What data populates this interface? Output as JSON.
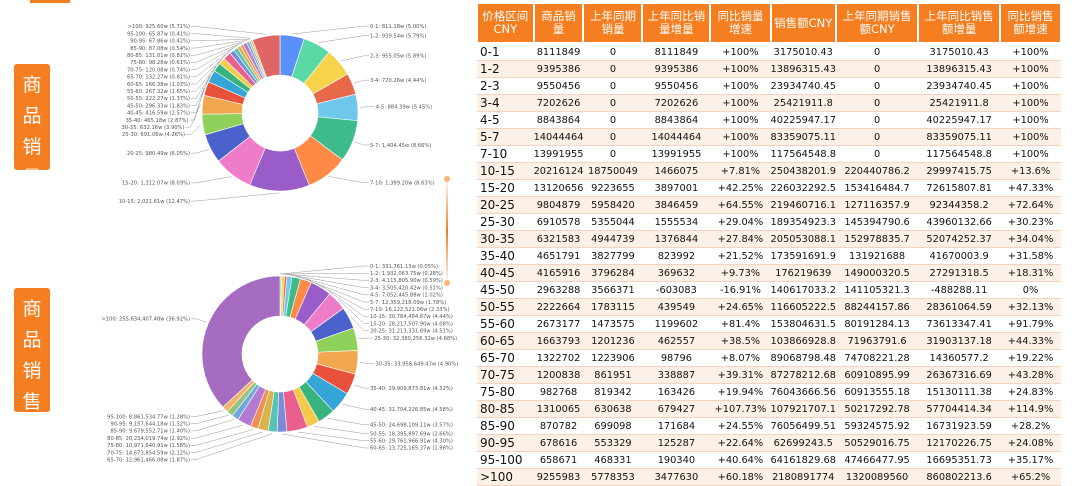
{
  "side_labels": {
    "sales": "商品销量",
    "revenue": "商品销售额"
  },
  "chart_data": [
    {
      "type": "pie",
      "variant": "donut",
      "slices": [
        {
          "label": "0-1",
          "value": 811.18,
          "text": "0-1: 811.18w (5.00%)",
          "color": "#5b8ff9"
        },
        {
          "label": "1-2",
          "value": 939.54,
          "text": "1-2: 939.54w (5.79%)",
          "color": "#5ad8a6"
        },
        {
          "label": "2-3",
          "value": 955.05,
          "text": "2-3: 955.05w (5.89%)",
          "color": "#f6d34a"
        },
        {
          "label": "3-4",
          "value": 720.26,
          "text": "3-4: 720.26w (4.44%)",
          "color": "#e8684a"
        },
        {
          "label": "4-5",
          "value": 884.39,
          "text": "4-5: 884.39w (5.45%)",
          "color": "#6dc8ec"
        },
        {
          "label": "5-7",
          "value": 1404.45,
          "text": "5-7: 1,404.45w (8.66%)",
          "color": "#3dbb8b"
        },
        {
          "label": "7-10",
          "value": 1399.2,
          "text": "7-10: 1,399.20w (8.63%)",
          "color": "#ff8a45"
        },
        {
          "label": "10-15",
          "value": 2021.61,
          "text": "10-15: 2,021.61w (12.47%)",
          "color": "#9a5cc9"
        },
        {
          "label": "15-20",
          "value": 1312.07,
          "text": "15-20: 1,312.07w (8.09%)",
          "color": "#ee7cc8"
        },
        {
          "label": "20-25",
          "value": 980.49,
          "text": "20-25: 980.49w (6.05%)",
          "color": "#4b62cc"
        },
        {
          "label": "25-30",
          "value": 691.06,
          "text": "25-30: 691.06w (4.26%)",
          "color": "#8fd05a"
        },
        {
          "label": "30-35",
          "value": 632.16,
          "text": "30-35: 632.16w (3.90%)",
          "color": "#f2a650"
        },
        {
          "label": "35-40",
          "value": 465.18,
          "text": "35-40: 465.18w (2.87%)",
          "color": "#e8523c"
        },
        {
          "label": "40-45",
          "value": 416.59,
          "text": "40-45: 416.59w (2.57%)",
          "color": "#35a4d6"
        },
        {
          "label": "45-50",
          "value": 296.33,
          "text": "45-50: 296.33w (1.83%)",
          "color": "#36b37e"
        },
        {
          "label": "50-55",
          "value": 222.27,
          "text": "50-55: 222.27w (1.37%)",
          "color": "#f7c948"
        },
        {
          "label": "55-60",
          "value": 267.32,
          "text": "55-60: 267.32w (1.65%)",
          "color": "#e95f8e"
        },
        {
          "label": "60-65",
          "value": 166.38,
          "text": "60-65: 166.38w (1.03%)",
          "color": "#7a8bd9"
        },
        {
          "label": "65-70",
          "value": 132.27,
          "text": "65-70: 132.27w (0.81%)",
          "color": "#58c2b4"
        },
        {
          "label": "70-75",
          "value": 120.08,
          "text": "70-75: 120.08w (0.74%)",
          "color": "#d9b44a"
        },
        {
          "label": "75-80",
          "value": 98.28,
          "text": "75-80: 98.28w (0.61%)",
          "color": "#ef8f52"
        },
        {
          "label": "80-85",
          "value": 131.01,
          "text": "80-85: 131.01w (0.81%)",
          "color": "#b37ad1"
        },
        {
          "label": "85-90",
          "value": 87.08,
          "text": "85-90: 87.08w (0.54%)",
          "color": "#6fa8dc"
        },
        {
          "label": "90-95",
          "value": 67.86,
          "text": "90-95: 67.86w (0.42%)",
          "color": "#93c47d"
        },
        {
          "label": "95-100",
          "value": 65.87,
          "text": "95-100: 65.87w (0.41%)",
          "color": "#f6b26b"
        },
        {
          "label": ">100",
          "value": 925.6,
          "text": ">100: 925.60w (5.71%)",
          "color": "#e06666"
        }
      ]
    },
    {
      "type": "pie",
      "variant": "donut",
      "slices": [
        {
          "label": "0-1",
          "value": 331761.13,
          "text": "0-1: 331,761.13w (0.05%)",
          "color": "#5b8ff9"
        },
        {
          "label": "1-2",
          "value": 1932063.75,
          "text": "1-2: 1,932,063.75w (0.28%)",
          "color": "#5ad8a6"
        },
        {
          "label": "2-3",
          "value": 4115805.9,
          "text": "2-3: 4,115,805.90w (0.59%)",
          "color": "#f6d34a"
        },
        {
          "label": "3-4",
          "value": 3505420.42,
          "text": "3-4: 3,505,420.42w (0.51%)",
          "color": "#e8684a"
        },
        {
          "label": "4-5",
          "value": 7052445.88,
          "text": "4-5: 7,052,445.88w (1.02%)",
          "color": "#6dc8ec"
        },
        {
          "label": "5-7",
          "value": 12359218.09,
          "text": "5-7: 12,359,218.09w (1.78%)",
          "color": "#3dbb8b"
        },
        {
          "label": "7-10",
          "value": 16122521.06,
          "text": "7-10: 16,122,521.06w (2.33%)",
          "color": "#ff8a45"
        },
        {
          "label": "10-15",
          "value": 30784484.67,
          "text": "10-15: 30,784,484.67w (4.44%)",
          "color": "#9a5cc9"
        },
        {
          "label": "15-20",
          "value": 28217507.9,
          "text": "15-20: 28,217,507.90w (4.08%)",
          "color": "#ee7cc8"
        },
        {
          "label": "20-25",
          "value": 31213331.69,
          "text": "20-25: 31,213,331.69w (4.51%)",
          "color": "#4b62cc"
        },
        {
          "label": "25-30",
          "value": 32380256.32,
          "text": "25-30: 32,380,256.32w (4.68%)",
          "color": "#8fd05a"
        },
        {
          "label": "30-35",
          "value": 33958649.47,
          "text": "30-35: 33,958,649.47w (4.90%)",
          "color": "#f2a650"
        },
        {
          "label": "35-40",
          "value": 29909873.81,
          "text": "35-40: 29,909,873.81w (4.32%)",
          "color": "#e8523c"
        },
        {
          "label": "40-45",
          "value": 31704226.85,
          "text": "40-45: 31,704,226.85w (4.58%)",
          "color": "#35a4d6"
        },
        {
          "label": "45-50",
          "value": 24698109.11,
          "text": "45-50: 24,698,109.11w (3.57%)",
          "color": "#36b37e"
        },
        {
          "label": "50-55",
          "value": 18395897.69,
          "text": "50-55: 18,395,897.69w (2.66%)",
          "color": "#f7c948"
        },
        {
          "label": "55-60",
          "value": 29761966.91,
          "text": "55-60: 29,761,966.91w (4.30%)",
          "color": "#e95f8e"
        },
        {
          "label": "60-65",
          "value": 13725165.37,
          "text": "60-65: 13,725,165.37w (1.98%)",
          "color": "#7a8bd9"
        },
        {
          "label": "65-70",
          "value": 12961466.08,
          "text": "65-70: 12,961,466.08w (1.87%)",
          "color": "#58c2b4"
        },
        {
          "label": "70-75",
          "value": 14673854.59,
          "text": "70-75: 14,673,854.59w (2.12%)",
          "color": "#d9b44a"
        },
        {
          "label": "75-80",
          "value": 10971640.91,
          "text": "75-80: 10,971,640.91w (1.58%)",
          "color": "#ef8f52"
        },
        {
          "label": "80-85",
          "value": 20234019.74,
          "text": "80-85: 20,234,019.74w (2.92%)",
          "color": "#b37ad1"
        },
        {
          "label": "85-90",
          "value": 9679552.71,
          "text": "85-90: 9,679,552.71w (1.40%)",
          "color": "#6fa8dc"
        },
        {
          "label": "90-95",
          "value": 9157644.18,
          "text": "90-95: 9,157,644.18w (1.32%)",
          "color": "#93c47d"
        },
        {
          "label": "95-100",
          "value": 8861534.77,
          "text": "95-100: 8,861,534.77w (1.28%)",
          "color": "#f6b26b"
        },
        {
          "label": ">100",
          "value": 255634407.48,
          "text": ">100: 255,634,407.48w (36.92%)",
          "color": "#a56cc1"
        }
      ]
    },
    {
      "type": "table",
      "headers": [
        "价格区间CNY",
        "商品销量",
        "上年同期销量",
        "上年同比销量增量",
        "同比销量增速",
        "销售额CNY",
        "上年同期销售额CNY",
        "上年同比销售额增量",
        "同比销售额增速"
      ],
      "rows": [
        [
          "0-1",
          "8111849",
          "0",
          "8111849",
          "+100%",
          "3175010.43",
          "0",
          "3175010.43",
          "+100%"
        ],
        [
          "1-2",
          "9395386",
          "0",
          "9395386",
          "+100%",
          "13896315.43",
          "0",
          "13896315.43",
          "+100%"
        ],
        [
          "2-3",
          "9550456",
          "0",
          "9550456",
          "+100%",
          "23934740.45",
          "0",
          "23934740.45",
          "+100%"
        ],
        [
          "3-4",
          "7202626",
          "0",
          "7202626",
          "+100%",
          "25421911.8",
          "0",
          "25421911.8",
          "+100%"
        ],
        [
          "4-5",
          "8843864",
          "0",
          "8843864",
          "+100%",
          "40225947.17",
          "0",
          "40225947.17",
          "+100%"
        ],
        [
          "5-7",
          "14044464",
          "0",
          "14044464",
          "+100%",
          "83359075.11",
          "0",
          "83359075.11",
          "+100%"
        ],
        [
          "7-10",
          "13991955",
          "0",
          "13991955",
          "+100%",
          "117564548.8",
          "0",
          "117564548.8",
          "+100%"
        ],
        [
          "10-15",
          "20216124",
          "18750049",
          "1466075",
          "+7.81%",
          "250438201.9",
          "220440786.2",
          "29997415.75",
          "+13.6%"
        ],
        [
          "15-20",
          "13120656",
          "9223655",
          "3897001",
          "+42.25%",
          "226032292.5",
          "153416484.7",
          "72615807.81",
          "+47.33%"
        ],
        [
          "20-25",
          "9804879",
          "5958420",
          "3846459",
          "+64.55%",
          "219460716.1",
          "127116357.9",
          "92344358.2",
          "+72.64%"
        ],
        [
          "25-30",
          "6910578",
          "5355044",
          "1555534",
          "+29.04%",
          "189354923.3",
          "145394790.6",
          "43960132.66",
          "+30.23%"
        ],
        [
          "30-35",
          "6321583",
          "4944739",
          "1376844",
          "+27.84%",
          "205053088.1",
          "152978835.7",
          "52074252.37",
          "+34.04%"
        ],
        [
          "35-40",
          "4651791",
          "3827799",
          "823992",
          "+21.52%",
          "173591691.9",
          "131921688",
          "41670003.9",
          "+31.58%"
        ],
        [
          "40-45",
          "4165916",
          "3796284",
          "369632",
          "+9.73%",
          "176219639",
          "149000320.5",
          "27291318.5",
          "+18.31%"
        ],
        [
          "45-50",
          "2963288",
          "3566371",
          "-603083",
          "-16.91%",
          "140617033.2",
          "141105321.3",
          "-488288.11",
          "0%"
        ],
        [
          "50-55",
          "2222664",
          "1783115",
          "439549",
          "+24.65%",
          "116605222.5",
          "88244157.86",
          "28361064.59",
          "+32.13%"
        ],
        [
          "55-60",
          "2673177",
          "1473575",
          "1199602",
          "+81.4%",
          "153804631.5",
          "80191284.13",
          "73613347.41",
          "+91.79%"
        ],
        [
          "60-65",
          "1663793",
          "1201236",
          "462557",
          "+38.5%",
          "103866928.8",
          "71963791.6",
          "31903137.18",
          "+44.33%"
        ],
        [
          "65-70",
          "1322702",
          "1223906",
          "98796",
          "+8.07%",
          "89068798.48",
          "74708221.28",
          "14360577.2",
          "+19.22%"
        ],
        [
          "70-75",
          "1200838",
          "861951",
          "338887",
          "+39.31%",
          "87278212.68",
          "60910895.99",
          "26367316.69",
          "+43.28%"
        ],
        [
          "75-80",
          "982768",
          "819342",
          "163426",
          "+19.94%",
          "76043666.56",
          "60913555.18",
          "15130111.38",
          "+24.83%"
        ],
        [
          "80-85",
          "1310065",
          "630638",
          "679427",
          "+107.73%",
          "107921707.1",
          "50217292.78",
          "57704414.34",
          "+114.9%"
        ],
        [
          "85-90",
          "870782",
          "699098",
          "171684",
          "+24.55%",
          "76056499.51",
          "59324575.92",
          "16731923.59",
          "+28.2%"
        ],
        [
          "90-95",
          "678616",
          "553329",
          "125287",
          "+22.64%",
          "62699243.5",
          "50529016.75",
          "12170226.75",
          "+24.08%"
        ],
        [
          "95-100",
          "658671",
          "468331",
          "190340",
          "+40.64%",
          "64161829.68",
          "47466477.95",
          "16695351.73",
          "+35.17%"
        ],
        [
          ">100",
          "9255983",
          "5778353",
          "3477630",
          "+60.18%",
          "2180891774",
          "1320089560",
          "860802213.6",
          "+65.2%"
        ]
      ]
    }
  ]
}
